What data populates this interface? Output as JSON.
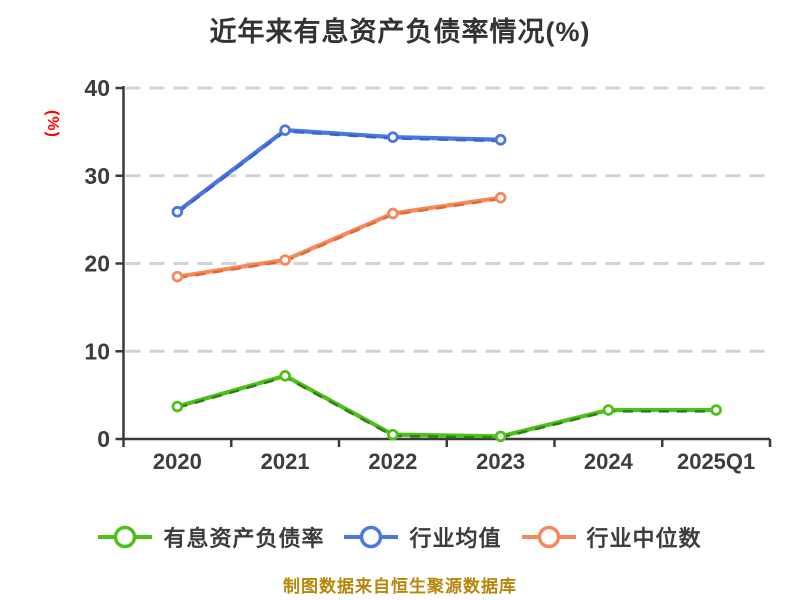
{
  "title": "近年来有息资产负债率情况(%)",
  "y_axis_label": "(%)",
  "caption": "制图数据来自恒生聚源数据库",
  "colors": {
    "background": "#FFFFFF",
    "title": "#333333",
    "axis": "#3A3A3A",
    "tick_label": "#3D3D3D",
    "grid": "#D3D3D3",
    "y_axis_label": "#FF0000",
    "caption": "#B8860B",
    "marker_fill": "#FFFFFF"
  },
  "legend": [
    {
      "label": "有息资产负债率",
      "color_key": "green",
      "color": "#4FC01A"
    },
    {
      "label": "行业均值",
      "color_key": "blue",
      "color": "#4A77E2"
    },
    {
      "label": "行业中位数",
      "color_key": "orange",
      "color": "#F5895C"
    }
  ],
  "chart_data": {
    "type": "line",
    "title": "近年来有息资产负债率情况(%)",
    "ylabel": "(%)",
    "categories": [
      "2020",
      "2021",
      "2022",
      "2023",
      "2024",
      "2025Q1"
    ],
    "series": [
      {
        "name": "有息资产负债率",
        "color": "#4FC01A",
        "dash_overlay_color": "#2F7D14",
        "marker": "circle-white-fill",
        "values": [
          3.7,
          7.2,
          0.5,
          0.3,
          3.3,
          3.3
        ]
      },
      {
        "name": "行业均值",
        "color": "#4A77E2",
        "dash_overlay_color": "#3A62C8",
        "marker": "circle-white-fill",
        "values": [
          25.9,
          35.2,
          34.4,
          34.1,
          null,
          null
        ]
      },
      {
        "name": "行业中位数",
        "color": "#F5895C",
        "dash_overlay_color": "#E06A35",
        "marker": "circle-white-fill",
        "values": [
          18.5,
          20.4,
          25.7,
          27.5,
          null,
          null
        ]
      }
    ],
    "ylim": [
      0,
      40
    ],
    "y_ticks": [
      0,
      10,
      20,
      30,
      40
    ],
    "grid": "horizontal-dashed",
    "legend_position": "bottom"
  }
}
